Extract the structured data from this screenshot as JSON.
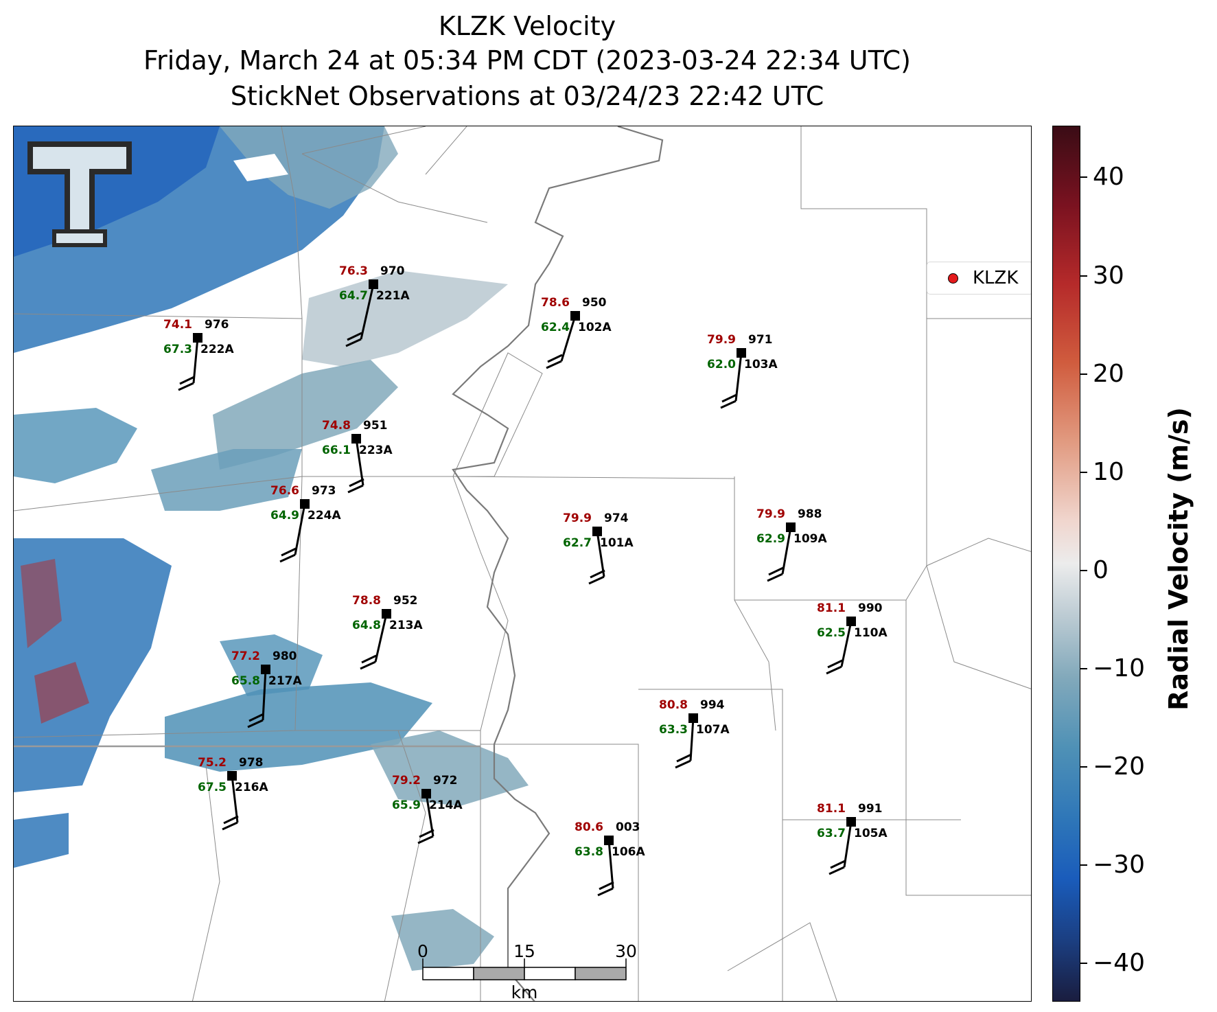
{
  "title": {
    "line1": "KLZK Velocity",
    "line2": "Friday, March 24 at 05:34 PM CDT (2023-03-24 22:34 UTC)",
    "line3": "StickNet Observations at 03/24/23 22:42 UTC"
  },
  "legend": {
    "label": "KLZK",
    "marker_color": "#e41a1c"
  },
  "logo": {
    "icon": "texas-tech-double-t-logo"
  },
  "colorbar": {
    "label": "Radial Velocity (m/s)",
    "range": [
      -45,
      45
    ],
    "ticks": [
      40,
      30,
      20,
      10,
      0,
      "−10",
      "−20",
      "−30",
      "−40"
    ],
    "colors": {
      "max": "#3a0c15",
      "zero": "#ececec",
      "min": "#1a1d3f",
      "receding": "#b52a2a",
      "approaching": "#2f77b8"
    }
  },
  "scale_bar": {
    "labels": [
      "0",
      "15",
      "30"
    ],
    "unit": "km"
  },
  "stations": [
    {
      "id": "221A",
      "temp": "76.3",
      "dew": "64.7",
      "pressure": "970"
    },
    {
      "id": "222A",
      "temp": "74.1",
      "dew": "67.3",
      "pressure": "976"
    },
    {
      "id": "102A",
      "temp": "78.6",
      "dew": "62.4",
      "pressure": "950"
    },
    {
      "id": "103A",
      "temp": "79.9",
      "dew": "62.0",
      "pressure": "971"
    },
    {
      "id": "223A",
      "temp": "74.8",
      "dew": "66.1",
      "pressure": "951"
    },
    {
      "id": "224A",
      "temp": "76.6",
      "dew": "64.9",
      "pressure": "973"
    },
    {
      "id": "101A",
      "temp": "79.9",
      "dew": "62.7",
      "pressure": "974"
    },
    {
      "id": "109A",
      "temp": "79.9",
      "dew": "62.9",
      "pressure": "988"
    },
    {
      "id": "213A",
      "temp": "78.8",
      "dew": "64.8",
      "pressure": "952"
    },
    {
      "id": "110A",
      "temp": "81.1",
      "dew": "62.5",
      "pressure": "990"
    },
    {
      "id": "217A",
      "temp": "77.2",
      "dew": "65.8",
      "pressure": "980"
    },
    {
      "id": "107A",
      "temp": "80.8",
      "dew": "63.3",
      "pressure": "994"
    },
    {
      "id": "216A",
      "temp": "75.2",
      "dew": "67.5",
      "pressure": "978"
    },
    {
      "id": "214A",
      "temp": "79.2",
      "dew": "65.9",
      "pressure": "972"
    },
    {
      "id": "106A",
      "temp": "80.6",
      "dew": "63.8",
      "pressure": "003"
    },
    {
      "id": "105A",
      "temp": "81.1",
      "dew": "63.7",
      "pressure": "991"
    }
  ]
}
